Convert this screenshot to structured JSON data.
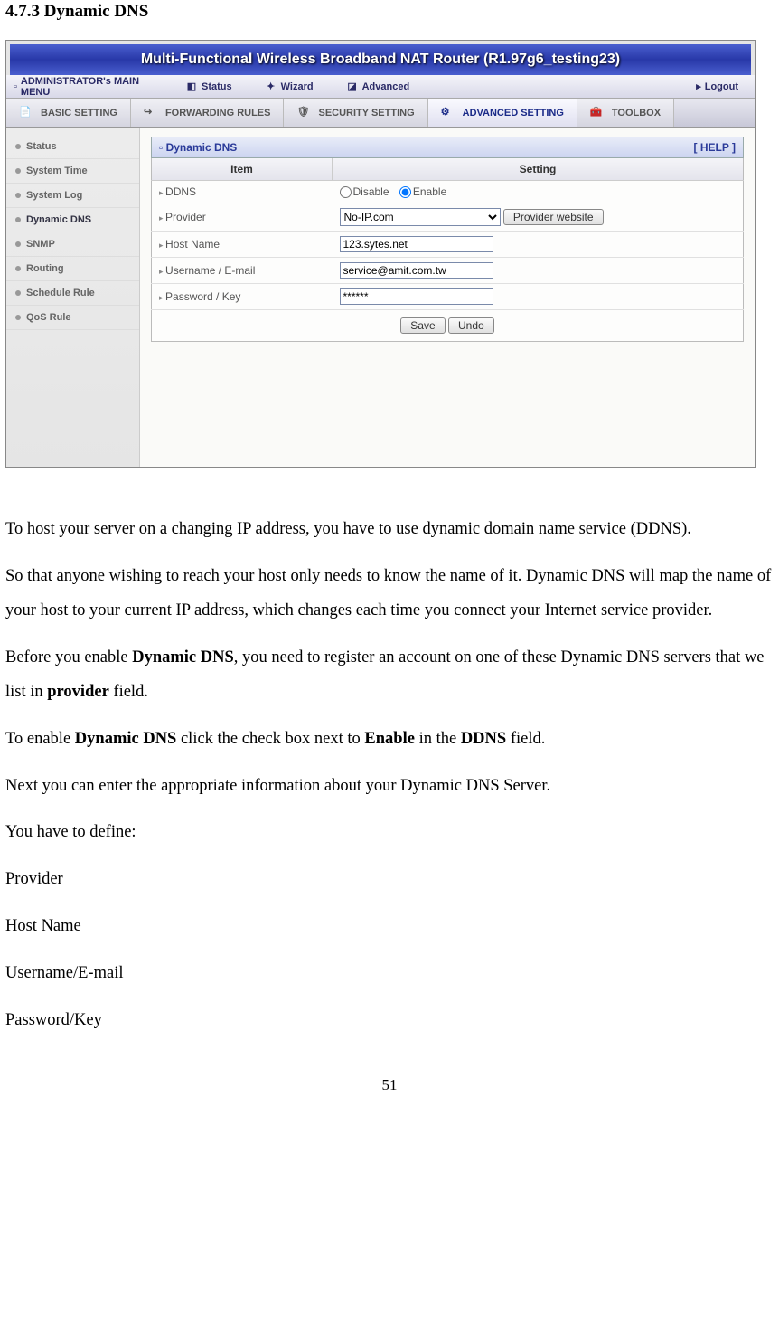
{
  "section_title": "4.7.3 Dynamic DNS",
  "router_title": "Multi-Functional Wireless Broadband NAT Router (R1.97g6_testing23)",
  "menu": {
    "admin": "ADMINISTRATOR's MAIN MENU",
    "status": "Status",
    "wizard": "Wizard",
    "advanced": "Advanced",
    "logout": "Logout"
  },
  "tabs": {
    "basic": "BASIC SETTING",
    "forwarding": "FORWARDING RULES",
    "security": "SECURITY SETTING",
    "advanced": "ADVANCED SETTING",
    "toolbox": "TOOLBOX"
  },
  "sidebar": {
    "items": [
      "Status",
      "System Time",
      "System Log",
      "Dynamic DNS",
      "SNMP",
      "Routing",
      "Schedule Rule",
      "QoS Rule"
    ]
  },
  "panel": {
    "title": "Dynamic DNS",
    "help": "[ HELP ]",
    "col_item": "Item",
    "col_setting": "Setting"
  },
  "fields": {
    "ddns_label": "DDNS",
    "disable": "Disable",
    "enable": "Enable",
    "provider_label": "Provider",
    "provider_value": "No-IP.com",
    "provider_btn": "Provider website",
    "host_label": "Host Name",
    "host_value": "123.sytes.net",
    "user_label": "Username / E-mail",
    "user_value": "service@amit.com.tw",
    "pass_label": "Password / Key",
    "pass_value": "******"
  },
  "buttons": {
    "save": "Save",
    "undo": "Undo"
  },
  "doc": {
    "p1": "To host your server on a changing IP address, you have to use dynamic domain name service (DDNS).",
    "p2": "So that anyone wishing to reach your host only needs to know the name of it. Dynamic DNS will map the name of your host to your current IP address, which changes each time you connect your Internet service provider.",
    "p3a": "Before you enable ",
    "p3b": "Dynamic DNS",
    "p3c": ", you need to register an account on one of these Dynamic DNS servers that we list in ",
    "p3d": "provider",
    "p3e": " field.",
    "p4a": "To enable ",
    "p4b": "Dynamic DNS",
    "p4c": " click the check box next to ",
    "p4d": "Enable",
    "p4e": " in the ",
    "p4f": "DDNS",
    "p4g": " field.",
    "p5": "Next you can enter the appropriate information about your Dynamic DNS Server.",
    "p6": "You have to define:",
    "l1": "Provider",
    "l2": "Host Name",
    "l3": "Username/E-mail",
    "l4": "Password/Key"
  },
  "page_number": "51"
}
